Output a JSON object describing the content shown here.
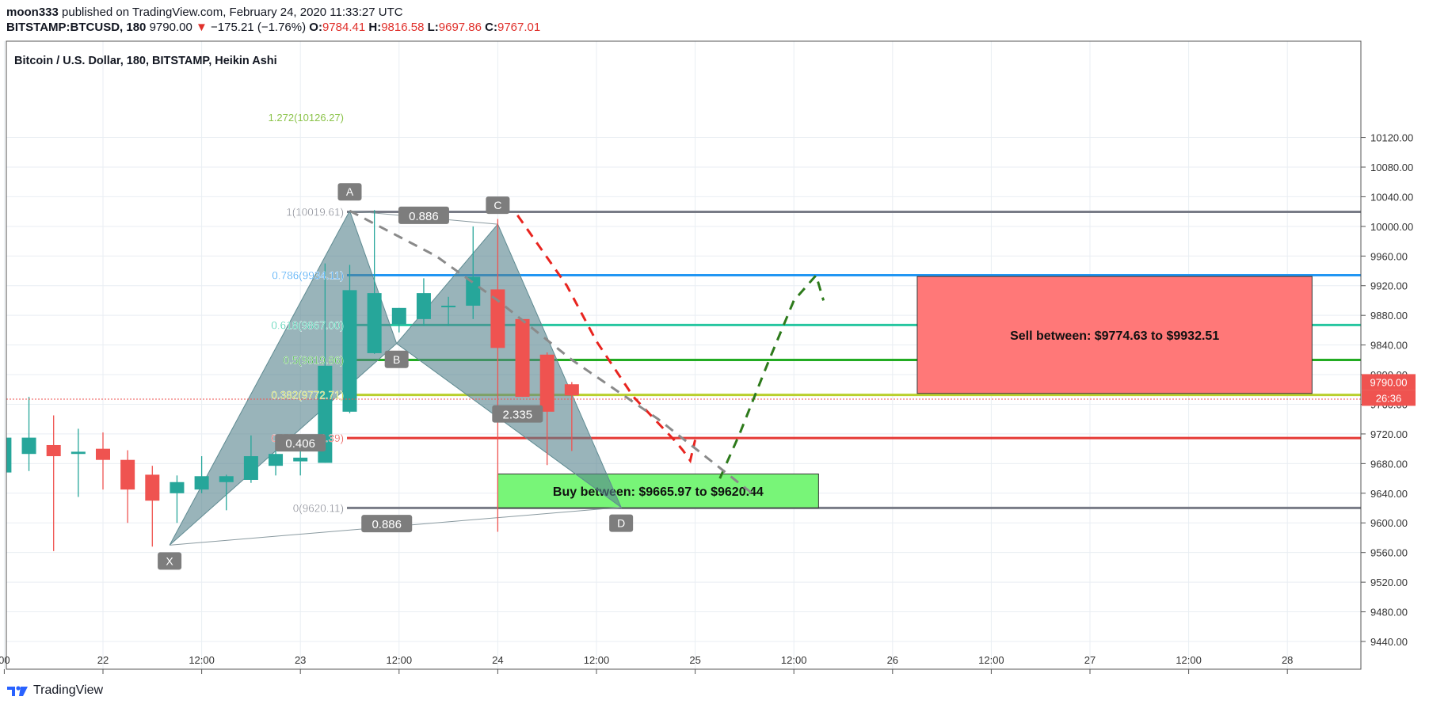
{
  "header": {
    "author": "moon333",
    "published_text": "published on TradingView.com, February 24, 2020 11:33:27 UTC",
    "symbol": "BITSTAMP:BTCUSD, 180",
    "last": "9790.00",
    "change_arrow": "▼",
    "change": "−175.21 (−1.76%)",
    "o_label": "O:",
    "o": "9784.41",
    "h_label": "H:",
    "h": "9816.58",
    "l_label": "L:",
    "l": "9697.86",
    "c_label": "C:",
    "c": "9767.01"
  },
  "chart_title": "Bitcoin / U.S. Dollar, 180, BITSTAMP, Heikin Ashi",
  "footer": {
    "brand": "TradingView"
  },
  "colors": {
    "up": "#26a69a",
    "down": "#ef5350",
    "grid": "#e9eef3"
  },
  "chart_data": {
    "type": "candlestick",
    "title": "Bitcoin / U.S. Dollar, 180, BITSTAMP, Heikin Ashi",
    "ylim": [
      9400,
      10140
    ],
    "y_ticks": [
      9440,
      9480,
      9520,
      9560,
      9600,
      9640,
      9680,
      9720,
      9760,
      9800,
      9840,
      9880,
      9920,
      9960,
      10000,
      10040,
      10080,
      10120
    ],
    "y_tick_labels": [
      "9440.00",
      "9480.00",
      "9520.00",
      "9560.00",
      "9600.00",
      "9640.00",
      "9680.00",
      "9720.00",
      "9760.00",
      "9800.00",
      "9840.00",
      "9880.00",
      "9920.00",
      "9960.00",
      "10000.00",
      "10040.00",
      "10080.00",
      "10120.00"
    ],
    "x_bar_range": [
      -4,
      55
    ],
    "x_ticks": [
      {
        "bar": -4,
        "label": "00"
      },
      {
        "bar": 0,
        "label": "22"
      },
      {
        "bar": 4,
        "label": "12:00"
      },
      {
        "bar": 8,
        "label": "23"
      },
      {
        "bar": 12,
        "label": "12:00"
      },
      {
        "bar": 16,
        "label": "24"
      },
      {
        "bar": 20,
        "label": "12:00"
      },
      {
        "bar": 24,
        "label": "25"
      },
      {
        "bar": 28,
        "label": "12:00"
      },
      {
        "bar": 32,
        "label": "26"
      },
      {
        "bar": 36,
        "label": "12:00"
      },
      {
        "bar": 40,
        "label": "27"
      },
      {
        "bar": 44,
        "label": "12:00"
      },
      {
        "bar": 48,
        "label": "28"
      }
    ],
    "candles": [
      {
        "t": -4,
        "o": 9668,
        "h": 9730,
        "l": 9665,
        "c": 9715
      },
      {
        "t": -3,
        "o": 9693,
        "h": 9770,
        "l": 9670,
        "c": 9715
      },
      {
        "t": -2,
        "o": 9705,
        "h": 9745,
        "l": 9562,
        "c": 9690
      },
      {
        "t": -1,
        "o": 9693,
        "h": 9727,
        "l": 9635,
        "c": 9696
      },
      {
        "t": 0,
        "o": 9700,
        "h": 9722,
        "l": 9645,
        "c": 9685
      },
      {
        "t": 1,
        "o": 9685,
        "h": 9698,
        "l": 9600,
        "c": 9645
      },
      {
        "t": 2,
        "o": 9665,
        "h": 9677,
        "l": 9568,
        "c": 9630
      },
      {
        "t": 3,
        "o": 9640,
        "h": 9664,
        "l": 9600,
        "c": 9655
      },
      {
        "t": 4,
        "o": 9645,
        "h": 9690,
        "l": 9640,
        "c": 9663
      },
      {
        "t": 5,
        "o": 9655,
        "h": 9665,
        "l": 9617,
        "c": 9663
      },
      {
        "t": 6,
        "o": 9658,
        "h": 9718,
        "l": 9654,
        "c": 9690
      },
      {
        "t": 7,
        "o": 9677,
        "h": 9700,
        "l": 9664,
        "c": 9693
      },
      {
        "t": 8,
        "o": 9683,
        "h": 9703,
        "l": 9664,
        "c": 9688
      },
      {
        "t": 9,
        "o": 9681,
        "h": 9950,
        "l": 9681,
        "c": 9812
      },
      {
        "t": 10,
        "o": 9750,
        "h": 9948,
        "l": 9748,
        "c": 9914
      },
      {
        "t": 11,
        "o": 9829,
        "h": 10022,
        "l": 9828,
        "c": 9910
      },
      {
        "t": 12,
        "o": 9868,
        "h": 9890,
        "l": 9857,
        "c": 9890
      },
      {
        "t": 13,
        "o": 9875,
        "h": 9930,
        "l": 9866,
        "c": 9910
      },
      {
        "t": 14,
        "o": 9893,
        "h": 9905,
        "l": 9866,
        "c": 9893
      },
      {
        "t": 15,
        "o": 9893,
        "h": 10000,
        "l": 9875,
        "c": 9932
      },
      {
        "t": 16,
        "o": 9915,
        "h": 10010,
        "l": 9588,
        "c": 9836
      },
      {
        "t": 17,
        "o": 9875,
        "h": 9875,
        "l": 9770,
        "c": 9770
      },
      {
        "t": 18,
        "o": 9827,
        "h": 9830,
        "l": 9678,
        "c": 9750
      },
      {
        "t": 19,
        "o": 9787,
        "h": 9790,
        "l": 9697,
        "c": 9772
      }
    ],
    "fib_levels": [
      {
        "label": "1(10019.61)",
        "value": 10019.61,
        "color": "#787b86"
      },
      {
        "label": "0.786(9934.11)",
        "value": 9934.11,
        "color": "#2196f3"
      },
      {
        "label": "0.618(9867.00)",
        "value": 9867.0,
        "color": "#26c6a0"
      },
      {
        "label": "0.5(9819.86)",
        "value": 9819.86,
        "color": "#22ab22"
      },
      {
        "label": "0.382(9772.71)",
        "value": 9772.71,
        "color": "#b9d02d"
      },
      {
        "label": "0.236(9714.39)",
        "value": 9714.39,
        "color": "#e53935"
      },
      {
        "label": "0(9620.11)",
        "value": 9620.11,
        "color": "#787b86"
      }
    ],
    "fib_top_clipped_label": "1.272(10126.27)",
    "harmonic_points": [
      {
        "name": "X",
        "t": 2.7,
        "v": 9570
      },
      {
        "name": "A",
        "t": 10.0,
        "v": 10021
      },
      {
        "name": "B",
        "t": 11.9,
        "v": 9842
      },
      {
        "name": "C",
        "t": 16.0,
        "v": 10003
      },
      {
        "name": "D",
        "t": 21.0,
        "v": 9621
      }
    ],
    "ratio_labels": [
      {
        "text": "0.406",
        "t": 8.0,
        "v": 9708
      },
      {
        "text": "0.886",
        "t": 13.0,
        "v": 10015
      },
      {
        "text": "2.335",
        "t": 16.8,
        "v": 9747
      },
      {
        "text": "0.886",
        "t": 11.5,
        "v": 9599
      }
    ],
    "zones": [
      {
        "text": "Sell between: $9774.63 to $9932.51",
        "t0": 33.0,
        "t1": 49.0,
        "v0": 9774.63,
        "v1": 9932.51,
        "fill": "#ff7878"
      },
      {
        "text": "Buy between: $9665.97 to $9620.44",
        "t0": 16.0,
        "t1": 29.0,
        "v0": 9620.44,
        "v1": 9665.97,
        "fill": "#78f578"
      }
    ],
    "projection_lines": [
      {
        "color": "#e8241f",
        "points": [
          [
            16.8,
            10015
          ],
          [
            18.8,
            9920
          ],
          [
            20.0,
            9845
          ],
          [
            21.5,
            9770
          ],
          [
            23.2,
            9710
          ],
          [
            23.5,
            9698
          ],
          [
            23.8,
            9684
          ],
          [
            24.0,
            9712
          ]
        ]
      },
      {
        "color": "#2d7a1b",
        "points": [
          [
            25.0,
            9660
          ],
          [
            25.8,
            9720
          ],
          [
            27.0,
            9820
          ],
          [
            28.0,
            9900
          ],
          [
            28.9,
            9934
          ],
          [
            29.2,
            9900
          ]
        ]
      },
      {
        "color": "#8a8a8a",
        "points": [
          [
            10.0,
            10021
          ],
          [
            13.5,
            9960
          ],
          [
            16.0,
            9900
          ],
          [
            19.0,
            9820
          ],
          [
            22.5,
            9740
          ],
          [
            26.3,
            9640
          ]
        ]
      }
    ],
    "price_badge": {
      "price": "9790.00",
      "countdown": "26:36",
      "value": 9790.0
    },
    "current_price_value": 9767.0
  }
}
